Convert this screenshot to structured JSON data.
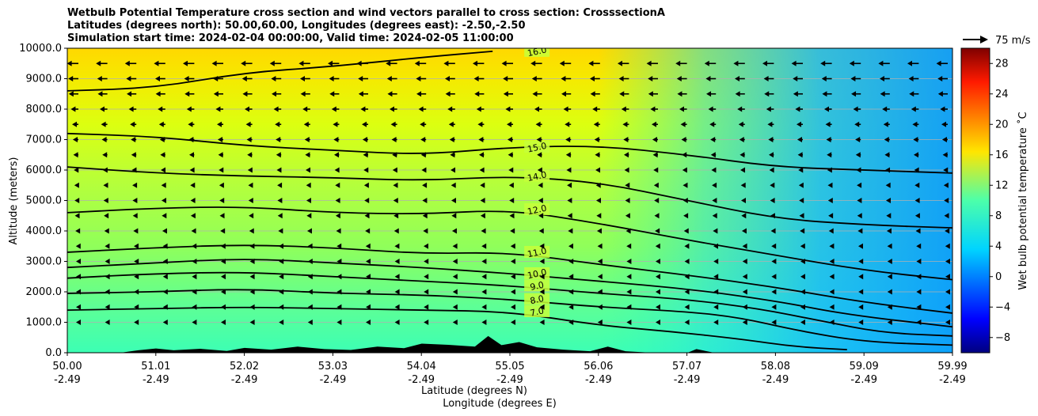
{
  "titles": [
    "Wetbulb Potential Temperature cross section and wind vectors parallel to cross section: CrosssectionA",
    "Latitudes (degrees north): 50.00,60.00, Longitudes (degrees east): -2.50,-2.50",
    "Simulation start time: 2024-02-04 00:00:00, Valid time: 2024-02-05 11:00:00"
  ],
  "wind_key": "75 m/s",
  "colorbar_label": "Wet bulb potential temperature ˚C",
  "colors": {
    "terrain": "#000000",
    "contour": "#000000",
    "grid": "#b0b0b0"
  },
  "chart_data": {
    "type": "heatmap",
    "title": "Wetbulb Potential Temperature cross section and wind vectors parallel to cross section: CrosssectionA",
    "ylabel": "Altitude (meters)",
    "xlabel_lat": "Latitude (degrees N)",
    "xlabel_lon": "Longitude (degrees E)",
    "xlim": [
      50.0,
      59.99
    ],
    "ylim": [
      0,
      10000
    ],
    "grid": "horizontal",
    "x_ticks": [
      {
        "lat": "50.00",
        "lon": "-2.49"
      },
      {
        "lat": "51.01",
        "lon": "-2.49"
      },
      {
        "lat": "52.02",
        "lon": "-2.49"
      },
      {
        "lat": "53.03",
        "lon": "-2.49"
      },
      {
        "lat": "54.04",
        "lon": "-2.49"
      },
      {
        "lat": "55.05",
        "lon": "-2.49"
      },
      {
        "lat": "56.06",
        "lon": "-2.49"
      },
      {
        "lat": "57.07",
        "lon": "-2.49"
      },
      {
        "lat": "58.08",
        "lon": "-2.49"
      },
      {
        "lat": "59.09",
        "lon": "-2.49"
      },
      {
        "lat": "59.99",
        "lon": "-2.49"
      }
    ],
    "y_ticks": [
      "0.0",
      "1000.0",
      "2000.0",
      "3000.0",
      "4000.0",
      "5000.0",
      "6000.0",
      "7000.0",
      "8000.0",
      "9000.0",
      "10000.0"
    ],
    "colorbar": {
      "label": "Wet bulb potential temperature ˚C",
      "range": [
        -10,
        30
      ],
      "ticks": [
        "−8",
        "−4",
        "0",
        "4",
        "8",
        "12",
        "16",
        "20",
        "24",
        "28"
      ],
      "tick_values": [
        -8,
        -4,
        0,
        4,
        8,
        12,
        16,
        20,
        24,
        28
      ]
    },
    "contour_lines": [
      {
        "label": "7.0",
        "points": [
          [
            50.0,
            1400
          ],
          [
            51.0,
            1450
          ],
          [
            52.0,
            1500
          ],
          [
            53.0,
            1450
          ],
          [
            54.0,
            1400
          ],
          [
            55.0,
            1350
          ],
          [
            56.0,
            900
          ],
          [
            56.8,
            700
          ],
          [
            57.6,
            450
          ],
          [
            58.2,
            200
          ],
          [
            58.8,
            100
          ]
        ]
      },
      {
        "label": "8.0",
        "points": [
          [
            50.0,
            1950
          ],
          [
            51.0,
            2000
          ],
          [
            52.0,
            2100
          ],
          [
            53.0,
            1950
          ],
          [
            54.0,
            1900
          ],
          [
            55.0,
            1750
          ],
          [
            56.0,
            1500
          ],
          [
            57.0,
            1350
          ],
          [
            57.6,
            1150
          ],
          [
            58.2,
            750
          ],
          [
            59.0,
            350
          ],
          [
            59.99,
            250
          ]
        ]
      },
      {
        "label": "9.0",
        "points": [
          [
            50.0,
            2450
          ],
          [
            51.0,
            2600
          ],
          [
            52.0,
            2650
          ],
          [
            53.0,
            2500
          ],
          [
            54.0,
            2350
          ],
          [
            55.0,
            2200
          ],
          [
            56.0,
            1950
          ],
          [
            57.0,
            1750
          ],
          [
            57.8,
            1450
          ],
          [
            58.5,
            1050
          ],
          [
            59.2,
            650
          ],
          [
            59.99,
            550
          ]
        ]
      },
      {
        "label": "10.0",
        "points": [
          [
            50.0,
            2800
          ],
          [
            51.0,
            2950
          ],
          [
            52.0,
            3100
          ],
          [
            53.0,
            2950
          ],
          [
            54.0,
            2800
          ],
          [
            55.0,
            2600
          ],
          [
            56.0,
            2350
          ],
          [
            57.0,
            2100
          ],
          [
            58.0,
            1700
          ],
          [
            58.8,
            1250
          ],
          [
            59.99,
            850
          ]
        ]
      },
      {
        "label": "11.0",
        "points": [
          [
            50.0,
            3300
          ],
          [
            51.0,
            3450
          ],
          [
            52.0,
            3550
          ],
          [
            53.0,
            3450
          ],
          [
            54.0,
            3250
          ],
          [
            55.0,
            3300
          ],
          [
            56.0,
            2900
          ],
          [
            57.0,
            2550
          ],
          [
            58.0,
            2150
          ],
          [
            59.0,
            1650
          ],
          [
            59.99,
            1300
          ]
        ]
      },
      {
        "label": "12.0",
        "points": [
          [
            50.0,
            4600
          ],
          [
            51.0,
            4750
          ],
          [
            52.0,
            4800
          ],
          [
            53.0,
            4600
          ],
          [
            54.0,
            4550
          ],
          [
            55.0,
            4700
          ],
          [
            56.0,
            4250
          ],
          [
            57.0,
            3700
          ],
          [
            58.0,
            3200
          ],
          [
            59.0,
            2700
          ],
          [
            59.99,
            2400
          ]
        ]
      },
      {
        "label": "14.0",
        "points": [
          [
            50.0,
            6100
          ],
          [
            51.0,
            5900
          ],
          [
            52.0,
            5800
          ],
          [
            53.0,
            5750
          ],
          [
            54.0,
            5650
          ],
          [
            55.0,
            5800
          ],
          [
            56.0,
            5600
          ],
          [
            57.0,
            5000
          ],
          [
            58.0,
            4400
          ],
          [
            59.0,
            4200
          ],
          [
            59.99,
            4100
          ]
        ]
      },
      {
        "label": "15.0",
        "points": [
          [
            50.0,
            7200
          ],
          [
            51.0,
            7100
          ],
          [
            52.0,
            6800
          ],
          [
            53.0,
            6650
          ],
          [
            54.0,
            6500
          ],
          [
            55.0,
            6750
          ],
          [
            56.0,
            6800
          ],
          [
            57.0,
            6500
          ],
          [
            58.0,
            6100
          ],
          [
            59.0,
            6000
          ],
          [
            59.99,
            5900
          ]
        ]
      },
      {
        "label": "16.0",
        "points": [
          [
            50.0,
            8600
          ],
          [
            51.0,
            8700
          ],
          [
            52.0,
            9200
          ],
          [
            53.0,
            9400
          ],
          [
            54.0,
            9700
          ],
          [
            54.8,
            9900
          ]
        ]
      }
    ],
    "terrain_profile": [
      [
        50.0,
        0
      ],
      [
        50.6,
        0
      ],
      [
        50.8,
        80
      ],
      [
        51.0,
        140
      ],
      [
        51.2,
        80
      ],
      [
        51.5,
        130
      ],
      [
        51.8,
        60
      ],
      [
        52.0,
        160
      ],
      [
        52.3,
        100
      ],
      [
        52.6,
        200
      ],
      [
        52.9,
        120
      ],
      [
        53.2,
        90
      ],
      [
        53.5,
        200
      ],
      [
        53.8,
        150
      ],
      [
        54.0,
        300
      ],
      [
        54.3,
        260
      ],
      [
        54.6,
        200
      ],
      [
        54.75,
        550
      ],
      [
        54.9,
        250
      ],
      [
        55.1,
        350
      ],
      [
        55.3,
        180
      ],
      [
        55.6,
        100
      ],
      [
        55.9,
        50
      ],
      [
        56.1,
        200
      ],
      [
        56.3,
        50
      ],
      [
        56.6,
        0
      ],
      [
        57.0,
        0
      ],
      [
        57.1,
        120
      ],
      [
        57.3,
        0
      ],
      [
        59.99,
        0
      ]
    ],
    "wind_vectors": {
      "key_speed": "75 m/s",
      "direction": "parallel to cross section, pointing south (toward 50N)",
      "levels": [
        {
          "altitude": 9500,
          "speed": 45
        },
        {
          "altitude": 9000,
          "speed": 40
        },
        {
          "altitude": 8500,
          "speed": 38
        },
        {
          "altitude": 8000,
          "speed": 30
        },
        {
          "altitude": 7500,
          "speed": 25
        },
        {
          "altitude": 7000,
          "speed": 22
        },
        {
          "altitude": 6500,
          "speed": 20
        },
        {
          "altitude": 6000,
          "speed": 18
        },
        {
          "altitude": 5500,
          "speed": 16
        },
        {
          "altitude": 5000,
          "speed": 15
        },
        {
          "altitude": 4500,
          "speed": 14
        },
        {
          "altitude": 4000,
          "speed": 12
        },
        {
          "altitude": 3500,
          "speed": 10
        },
        {
          "altitude": 3000,
          "speed": 9
        },
        {
          "altitude": 2500,
          "speed": 8
        },
        {
          "altitude": 2000,
          "speed": 7
        },
        {
          "altitude": 1500,
          "speed": 6
        },
        {
          "altitude": 1000,
          "speed": 5
        }
      ]
    }
  }
}
